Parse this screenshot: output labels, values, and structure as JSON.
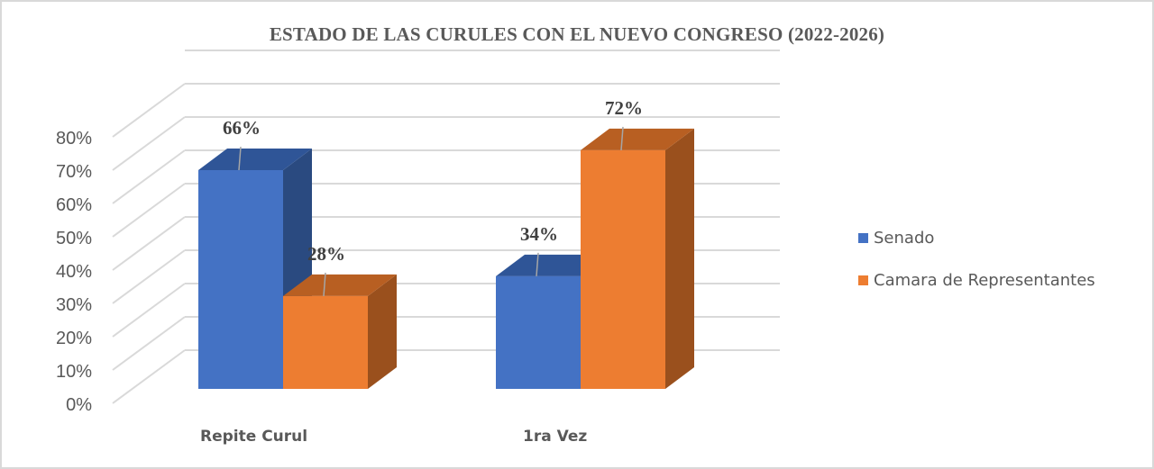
{
  "chart_data": {
    "type": "bar",
    "subtype": "3d-clustered-column",
    "title": "ESTADO DE LAS CURULES CON EL NUEVO CONGRESO (2022-2026)",
    "categories": [
      "Repite Curul",
      "1ra Vez"
    ],
    "series": [
      {
        "name": "Senado",
        "values": [
          66,
          34
        ],
        "labels": [
          "66%",
          "34%"
        ],
        "color": "#4472c4"
      },
      {
        "name": "Camara de Representantes",
        "values": [
          28,
          72
        ],
        "labels": [
          "28%",
          "72%"
        ],
        "color": "#ed7d31"
      }
    ],
    "xlabel": "",
    "ylabel": "",
    "ylim": [
      0,
      80
    ],
    "yticks": [
      "0%",
      "10%",
      "20%",
      "30%",
      "40%",
      "50%",
      "60%",
      "70%",
      "80%"
    ],
    "grid": true,
    "legend_position": "right"
  },
  "legend": {
    "items": [
      {
        "label": "Senado",
        "color": "#4472c4"
      },
      {
        "label": "Camara de Representantes",
        "color": "#ed7d31"
      }
    ]
  }
}
